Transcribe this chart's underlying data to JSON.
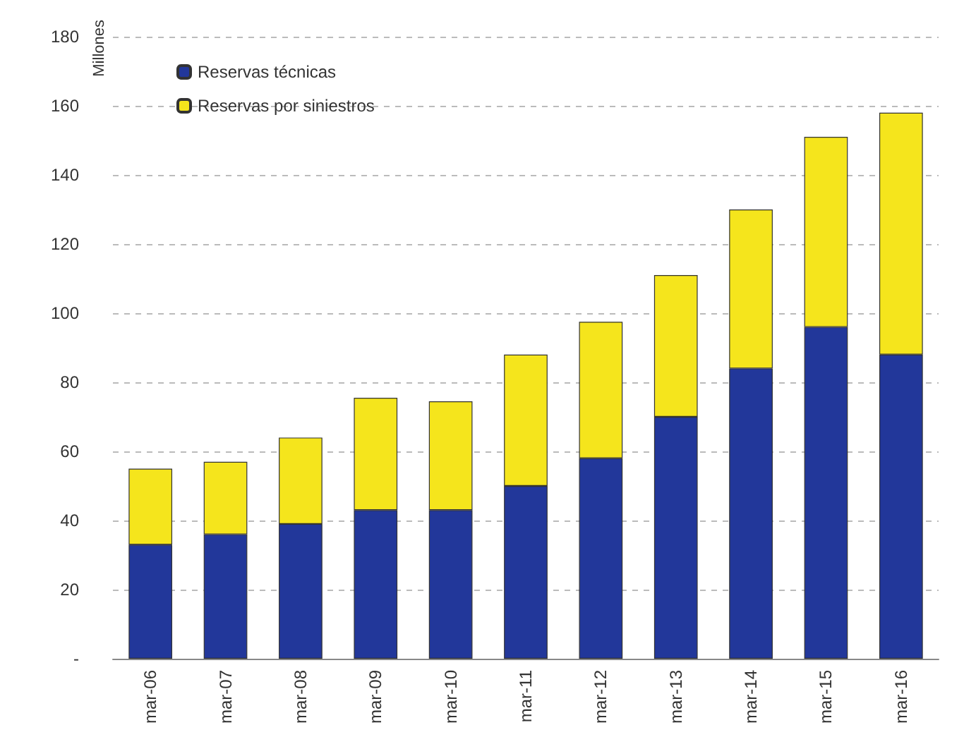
{
  "chart_data": {
    "type": "bar",
    "stacked": true,
    "ylabel": "Millones",
    "categories": [
      "mar-06",
      "mar-07",
      "mar-08",
      "mar-09",
      "mar-10",
      "mar-11",
      "mar-12",
      "mar-13",
      "mar-14",
      "mar-15",
      "mar-16"
    ],
    "series": [
      {
        "name": "Reservas técnicas",
        "color": "#22379a",
        "values": [
          33,
          36,
          39,
          43,
          43,
          50,
          58,
          70,
          84,
          96,
          88
        ]
      },
      {
        "name": "Reservas por siniestros",
        "color": "#f5e51c",
        "values": [
          22,
          21,
          25,
          32.5,
          31.5,
          38,
          39.5,
          41,
          46,
          55,
          70
        ]
      }
    ],
    "ylim": [
      0,
      180
    ],
    "yticks": [
      {
        "value": 0,
        "label": "-"
      },
      20,
      40,
      60,
      80,
      100,
      120,
      140,
      160,
      180
    ],
    "grid": "y",
    "legend": "top left"
  }
}
